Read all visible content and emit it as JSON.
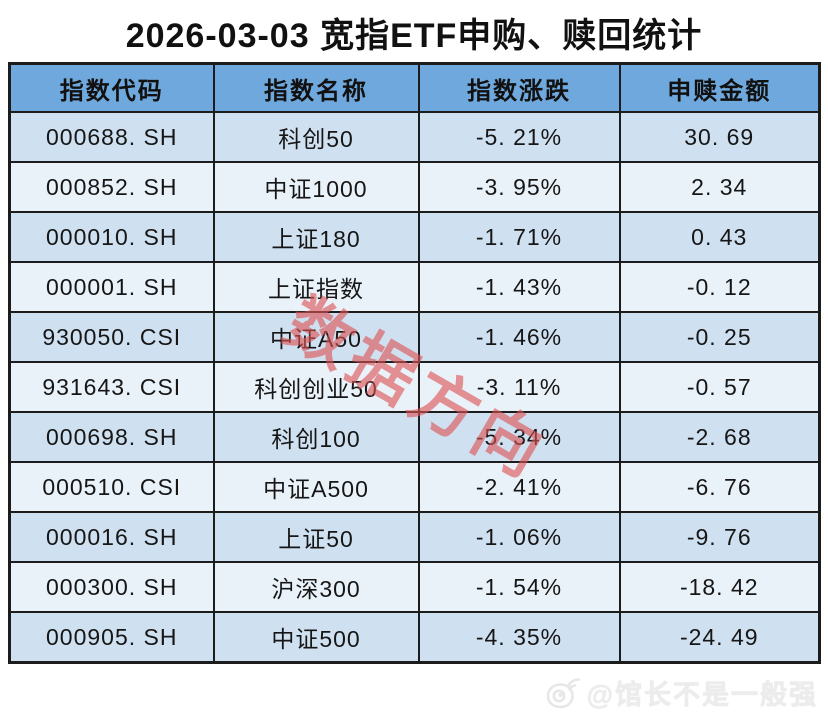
{
  "title": "2026-03-03 宽指ETF申购、赎回统计",
  "table": {
    "headers": [
      "指数代码",
      "指数名称",
      "指数涨跌",
      "申赎金额"
    ],
    "rows": [
      [
        "000688. SH",
        "科创50",
        "-5. 21%",
        "30. 69"
      ],
      [
        "000852. SH",
        "中证1000",
        "-3. 95%",
        "2. 34"
      ],
      [
        "000010. SH",
        "上证180",
        "-1. 71%",
        "0. 43"
      ],
      [
        "000001. SH",
        "上证指数",
        "-1. 43%",
        "-0. 12"
      ],
      [
        "930050. CSI",
        "中证A50",
        "-1. 46%",
        "-0. 25"
      ],
      [
        "931643. CSI",
        "科创创业50",
        "-3. 11%",
        "-0. 57"
      ],
      [
        "000698. SH",
        "科创100",
        "-5. 34%",
        "-2. 68"
      ],
      [
        "000510. CSI",
        "中证A500",
        "-2. 41%",
        "-6. 76"
      ],
      [
        "000016. SH",
        "上证50",
        "-1. 06%",
        "-9. 76"
      ],
      [
        "000300. SH",
        "沪深300",
        "-1. 54%",
        "-18. 42"
      ],
      [
        "000905. SH",
        "中证500",
        "-4. 35%",
        "-24. 49"
      ]
    ]
  },
  "chart_data": {
    "type": "table",
    "title": "2026-03-03 宽指ETF申购、赎回统计",
    "columns": [
      "指数代码",
      "指数名称",
      "指数涨跌",
      "申赎金额"
    ],
    "rows": [
      [
        "000688.SH",
        "科创50",
        "-5.21%",
        30.69
      ],
      [
        "000852.SH",
        "中证1000",
        "-3.95%",
        2.34
      ],
      [
        "000010.SH",
        "上证180",
        "-1.71%",
        0.43
      ],
      [
        "000001.SH",
        "上证指数",
        "-1.43%",
        -0.12
      ],
      [
        "930050.CSI",
        "中证A50",
        "-1.46%",
        -0.25
      ],
      [
        "931643.CSI",
        "科创创业50",
        "-3.11%",
        -0.57
      ],
      [
        "000698.SH",
        "科创100",
        "-5.34%",
        -2.68
      ],
      [
        "000510.CSI",
        "中证A500",
        "-2.41%",
        -6.76
      ],
      [
        "000016.SH",
        "上证50",
        "-1.06%",
        -9.76
      ],
      [
        "000300.SH",
        "沪深300",
        "-1.54%",
        -18.42
      ],
      [
        "000905.SH",
        "中证500",
        "-4.35%",
        -24.49
      ]
    ],
    "sorted_by": "申赎金额 descending",
    "layout": {
      "header_row": true,
      "zebra_striping": true,
      "grid": true
    }
  },
  "watermarks": {
    "diagonal": "数据方向",
    "credit": "@馆长不是一般强",
    "credit_icon": "weibo-logo-icon"
  },
  "colors": {
    "header_bg": "#6fa8dc",
    "row_dark_bg": "#cfe0f0",
    "row_light_bg": "#e9f1f9",
    "grid_border": "#1c1c1c",
    "title_text": "#111111",
    "cell_text": "#161616",
    "watermark_red": "#dd5454",
    "credit_gray": "#ececec"
  }
}
